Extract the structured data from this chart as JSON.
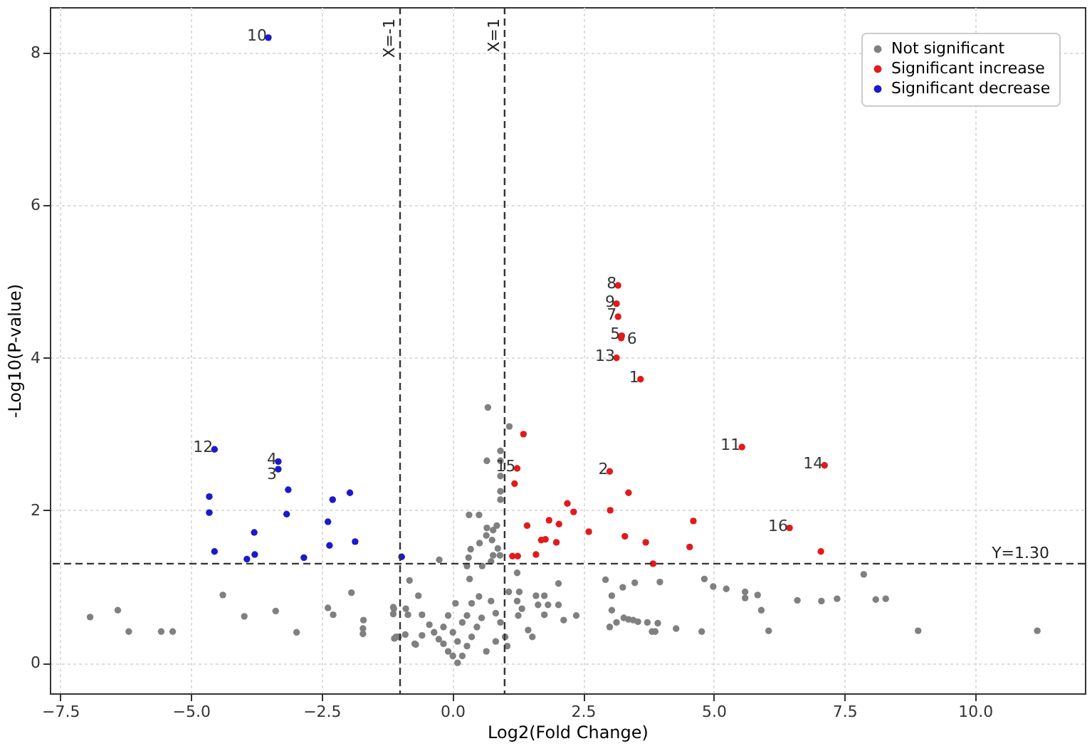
{
  "chart_data": {
    "type": "scatter",
    "xlabel": "Log2(Fold Change)",
    "ylabel": "-Log10(P-value)",
    "xlim": [
      -7.7,
      12.1
    ],
    "ylim": [
      -0.4,
      8.6
    ],
    "xticks": [
      {
        "value": -7.5,
        "label": "−7.5"
      },
      {
        "value": -5,
        "label": "−5.0"
      },
      {
        "value": -2.5,
        "label": "−2.5"
      },
      {
        "value": 0,
        "label": "0.0"
      },
      {
        "value": 2.5,
        "label": "2.5"
      },
      {
        "value": 5,
        "label": "5.0"
      },
      {
        "value": 7.5,
        "label": "7.5"
      },
      {
        "value": 10,
        "label": "10.0"
      }
    ],
    "yticks": [
      0,
      2,
      4,
      6,
      8
    ],
    "grid": true,
    "legend": "top right",
    "marker": "circle",
    "series": [
      {
        "name": "Not significant",
        "color": "#808080",
        "x": [
          -6.93,
          -6.4,
          -6.19,
          -5.57,
          -5.35,
          -4.39,
          -3.98,
          -3.38,
          -2.98,
          -2.38,
          -2.28,
          -1.93,
          -1.7,
          -1.71,
          -1.71,
          -1.13,
          -1.13,
          -1.11,
          -1.03,
          -0.89,
          -0.85,
          -0.82,
          -0.65,
          -0.7,
          -0.9,
          -0.58,
          -0.58,
          0.68,
          1.09,
          0.92,
          0.66,
          0.92,
          0.92,
          0.92,
          0.92,
          0.32,
          0.51,
          0.85,
          0.66,
          0.78,
          0.65,
          0.76,
          0.52,
          0.35,
          0.87,
          0.78,
          0.74,
          0.57,
          0.91,
          0.31,
          -0.25,
          0.1,
          0.01,
          0.19,
          -0.08,
          0.28,
          -0.17,
          0.37,
          -0.26,
          0.47,
          -0.35,
          0.56,
          -0.44,
          0.28,
          0.37,
          0.51,
          0.74,
          0.83,
          0.92,
          1.01,
          1.05,
          0.83,
          0.65,
          -0.72,
          -1.08,
          -1.12,
          -0.08,
          -0.17,
          0.01,
          0.1,
          0.19,
          0.06,
          0.33,
          0.28,
          1.24,
          1.28,
          1.24,
          1.33,
          1.26,
          1.6,
          1.76,
          1.64,
          1.83,
          1.76,
          2.03,
          2.03,
          2.13,
          2.37,
          1.45,
          1.53,
          1.08,
          2.93,
          3.05,
          3.26,
          3.49,
          3.97,
          3.05,
          3.01,
          3.14,
          3.28,
          3.37,
          3.46,
          3.55,
          3.73,
          3.93,
          3.82,
          3.88,
          4.28,
          4.77,
          4.82,
          4.99,
          5.24,
          5.6,
          5.6,
          5.84,
          5.91,
          6.05,
          6.6,
          7.06,
          7.36,
          7.87,
          8.1,
          8.29,
          8.91,
          11.19
        ],
        "values": [
          0.6,
          0.69,
          0.41,
          0.41,
          0.41,
          0.89,
          0.61,
          0.68,
          0.4,
          0.72,
          0.63,
          0.92,
          0.56,
          0.45,
          0.38,
          0.73,
          0.64,
          0.32,
          0.34,
          0.71,
          0.63,
          1.08,
          0.88,
          0.24,
          0.37,
          0.63,
          0.36,
          3.35,
          3.1,
          2.78,
          2.65,
          2.65,
          2.45,
          2.25,
          2.14,
          1.94,
          1.94,
          1.8,
          1.77,
          1.74,
          1.67,
          1.61,
          1.57,
          1.49,
          1.5,
          1.41,
          1.33,
          1.27,
          1.41,
          1.38,
          1.35,
          0.0,
          0.09,
          0.09,
          0.15,
          0.22,
          0.25,
          0.34,
          0.31,
          0.47,
          0.4,
          0.59,
          0.5,
          0.62,
          0.78,
          0.87,
          0.81,
          0.65,
          0.53,
          0.34,
          0.22,
          0.28,
          0.15,
          0.25,
          0.34,
          0.71,
          0.62,
          0.47,
          0.4,
          0.28,
          0.53,
          0.78,
          1.1,
          1.27,
          1.18,
          0.93,
          0.81,
          0.71,
          0.62,
          0.88,
          0.88,
          0.76,
          0.76,
          0.63,
          1.04,
          0.76,
          0.56,
          0.62,
          0.43,
          0.34,
          0.93,
          1.09,
          0.88,
          0.99,
          1.05,
          1.06,
          0.69,
          0.47,
          0.53,
          0.59,
          0.57,
          0.56,
          0.54,
          0.53,
          0.52,
          0.41,
          0.41,
          0.45,
          0.41,
          1.1,
          1.0,
          0.97,
          0.93,
          0.85,
          0.89,
          0.69,
          0.42,
          0.82,
          0.81,
          0.84,
          1.16,
          0.83,
          0.84,
          0.42,
          0.42
        ]
      },
      {
        "name": "Significant increase",
        "color": "#e31a1c",
        "x": [
          3.17,
          3.14,
          3.17,
          3.24,
          3.23,
          3.14,
          3.6,
          5.54,
          7.12,
          3.01,
          3.37,
          2.2,
          2.32,
          3.02,
          2.61,
          3.3,
          3.7,
          4.61,
          4.54,
          3.84,
          6.45,
          7.05,
          1.36,
          1.24,
          1.19,
          1.43,
          1.85,
          2.04,
          1.7,
          1.78,
          1.99,
          1.6,
          1.15,
          1.25
        ],
        "values": [
          4.95,
          4.71,
          4.54,
          4.29,
          4.26,
          4.0,
          3.72,
          2.83,
          2.59,
          2.51,
          2.23,
          2.09,
          1.98,
          2.0,
          1.72,
          1.66,
          1.58,
          1.86,
          1.52,
          1.3,
          1.77,
          1.46,
          3.0,
          2.55,
          2.35,
          1.8,
          1.87,
          1.82,
          1.61,
          1.62,
          1.58,
          1.42,
          1.4,
          1.4
        ]
      },
      {
        "name": "Significant decrease",
        "color": "#1a1acd",
        "x": [
          -3.52,
          -4.55,
          -3.33,
          -3.33,
          -3.14,
          -4.65,
          -4.65,
          -3.17,
          -2.29,
          -1.96,
          -2.38,
          -3.79,
          -2.35,
          -1.86,
          -4.55,
          -3.78,
          -3.93,
          -2.84,
          -0.97
        ],
        "values": [
          8.2,
          2.8,
          2.64,
          2.54,
          2.27,
          2.18,
          1.97,
          1.95,
          2.14,
          2.23,
          1.85,
          1.71,
          1.54,
          1.59,
          1.46,
          1.42,
          1.36,
          1.38,
          1.39
        ]
      }
    ],
    "ref_lines": [
      {
        "axis": "x",
        "value": -1,
        "label": "X=-1",
        "line_style": "dashed",
        "color": "#333333"
      },
      {
        "axis": "x",
        "value": 1,
        "label": "X=1",
        "line_style": "dashed",
        "color": "#333333"
      },
      {
        "axis": "y",
        "value": 1.3,
        "label": "Y=1.30",
        "line_style": "dashed",
        "color": "#333333"
      }
    ],
    "annotations": [
      {
        "text": "1",
        "x": 3.6,
        "y": 3.72
      },
      {
        "text": "2",
        "x": 3.01,
        "y": 2.51
      },
      {
        "text": "3",
        "x": -3.33,
        "y": 2.54
      },
      {
        "text": "4",
        "x": -3.33,
        "y": 2.64
      },
      {
        "text": "5",
        "x": 3.24,
        "y": 4.29
      },
      {
        "text": "6",
        "x": 3.23,
        "y": 4.26
      },
      {
        "text": "7",
        "x": 3.17,
        "y": 4.54
      },
      {
        "text": "8",
        "x": 3.17,
        "y": 4.95
      },
      {
        "text": "9",
        "x": 3.14,
        "y": 4.71
      },
      {
        "text": "10",
        "x": -3.52,
        "y": 8.2
      },
      {
        "text": "11",
        "x": 5.54,
        "y": 2.83
      },
      {
        "text": "12",
        "x": -4.55,
        "y": 2.8
      },
      {
        "text": "13",
        "x": 3.14,
        "y": 4.0
      },
      {
        "text": "14",
        "x": 7.12,
        "y": 2.59
      },
      {
        "text": "15",
        "x": 1.24,
        "y": 2.55
      },
      {
        "text": "16",
        "x": 6.45,
        "y": 1.77
      }
    ]
  }
}
